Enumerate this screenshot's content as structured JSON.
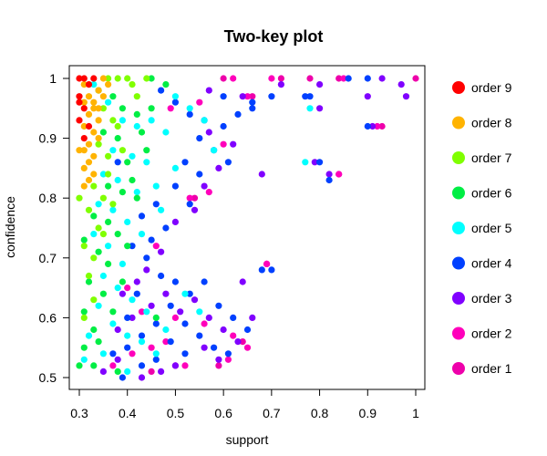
{
  "chart_data": {
    "type": "scatter",
    "title": "Two-key plot",
    "xlabel": "support",
    "ylabel": "confidence",
    "xlim": [
      0.3,
      1.0
    ],
    "ylim": [
      0.5,
      1.0
    ],
    "x_ticks": [
      0.3,
      0.4,
      0.5,
      0.6,
      0.7,
      0.8,
      0.9,
      1
    ],
    "x_tick_labels": [
      "0.3",
      "0.4",
      "0.5",
      "0.6",
      "0.7",
      "0.8",
      "0.9",
      "1"
    ],
    "y_ticks": [
      0.5,
      0.6,
      0.7,
      0.8,
      0.9,
      1
    ],
    "y_tick_labels": [
      "0.5",
      "0.6",
      "0.7",
      "0.8",
      "0.9",
      "1"
    ],
    "grid": false,
    "legend_position": "right",
    "series": [
      {
        "name": "order 9",
        "color": "#ff0000",
        "points": [
          [
            0.3,
            1.0
          ],
          [
            0.31,
            1.0
          ],
          [
            0.32,
            0.99
          ],
          [
            0.3,
            0.97
          ],
          [
            0.31,
            0.95
          ],
          [
            0.3,
            0.93
          ],
          [
            0.32,
            0.92
          ],
          [
            0.31,
            0.9
          ],
          [
            0.33,
            1.0
          ],
          [
            0.3,
            0.96
          ]
        ]
      },
      {
        "name": "order 8",
        "color": "#ffb300",
        "points": [
          [
            0.31,
            0.99
          ],
          [
            0.32,
            0.97
          ],
          [
            0.33,
            0.96
          ],
          [
            0.32,
            0.94
          ],
          [
            0.31,
            0.92
          ],
          [
            0.33,
            0.91
          ],
          [
            0.32,
            0.89
          ],
          [
            0.31,
            0.88
          ],
          [
            0.33,
            0.87
          ],
          [
            0.32,
            0.86
          ],
          [
            0.34,
            0.98
          ],
          [
            0.35,
            0.97
          ],
          [
            0.33,
            0.95
          ],
          [
            0.34,
            0.93
          ],
          [
            0.31,
            0.85
          ],
          [
            0.33,
            0.84
          ],
          [
            0.32,
            0.83
          ],
          [
            0.34,
            0.9
          ],
          [
            0.35,
            1.0
          ],
          [
            0.36,
            0.99
          ],
          [
            0.31,
            0.96
          ],
          [
            0.34,
            0.95
          ],
          [
            0.3,
            0.88
          ],
          [
            0.31,
            0.82
          ]
        ]
      },
      {
        "name": "order 7",
        "color": "#80ff00",
        "points": [
          [
            0.36,
            1.0
          ],
          [
            0.38,
            1.0
          ],
          [
            0.4,
            1.0
          ],
          [
            0.35,
            0.95
          ],
          [
            0.37,
            0.93
          ],
          [
            0.34,
            0.89
          ],
          [
            0.36,
            0.87
          ],
          [
            0.33,
            0.82
          ],
          [
            0.35,
            0.8
          ],
          [
            0.32,
            0.78
          ],
          [
            0.34,
            0.75
          ],
          [
            0.31,
            0.72
          ],
          [
            0.33,
            0.7
          ],
          [
            0.32,
            0.67
          ],
          [
            0.38,
            0.92
          ],
          [
            0.41,
            0.99
          ],
          [
            0.44,
            1.0
          ],
          [
            0.36,
            0.84
          ],
          [
            0.39,
            0.88
          ],
          [
            0.37,
            0.79
          ],
          [
            0.33,
            0.63
          ],
          [
            0.31,
            0.6
          ],
          [
            0.35,
            0.74
          ],
          [
            0.42,
            0.97
          ],
          [
            0.3,
            0.8
          ]
        ]
      },
      {
        "name": "order 6",
        "color": "#00ee44",
        "points": [
          [
            0.34,
            0.98
          ],
          [
            0.37,
            0.97
          ],
          [
            0.39,
            0.95
          ],
          [
            0.42,
            0.94
          ],
          [
            0.35,
            0.91
          ],
          [
            0.38,
            0.9
          ],
          [
            0.4,
            0.86
          ],
          [
            0.36,
            0.82
          ],
          [
            0.39,
            0.81
          ],
          [
            0.33,
            0.77
          ],
          [
            0.36,
            0.76
          ],
          [
            0.31,
            0.73
          ],
          [
            0.34,
            0.71
          ],
          [
            0.32,
            0.66
          ],
          [
            0.35,
            0.64
          ],
          [
            0.31,
            0.61
          ],
          [
            0.33,
            0.58
          ],
          [
            0.31,
            0.55
          ],
          [
            0.3,
            0.52
          ],
          [
            0.45,
            1.0
          ],
          [
            0.48,
            0.99
          ],
          [
            0.43,
            0.91
          ],
          [
            0.41,
            0.83
          ],
          [
            0.38,
            0.74
          ],
          [
            0.36,
            0.69
          ],
          [
            0.4,
            0.72
          ],
          [
            0.37,
            0.61
          ],
          [
            0.34,
            0.56
          ],
          [
            0.42,
            0.8
          ],
          [
            0.45,
            0.95
          ],
          [
            0.33,
            0.52
          ],
          [
            0.46,
            0.6
          ],
          [
            0.38,
            0.51
          ],
          [
            0.44,
            0.88
          ],
          [
            0.39,
            0.66
          ]
        ]
      },
      {
        "name": "order 5",
        "color": "#00ffff",
        "points": [
          [
            0.33,
            0.99
          ],
          [
            0.36,
            0.96
          ],
          [
            0.39,
            0.93
          ],
          [
            0.42,
            0.92
          ],
          [
            0.45,
            0.93
          ],
          [
            0.37,
            0.88
          ],
          [
            0.41,
            0.87
          ],
          [
            0.44,
            0.86
          ],
          [
            0.35,
            0.84
          ],
          [
            0.38,
            0.83
          ],
          [
            0.42,
            0.81
          ],
          [
            0.46,
            0.82
          ],
          [
            0.34,
            0.79
          ],
          [
            0.37,
            0.78
          ],
          [
            0.4,
            0.76
          ],
          [
            0.43,
            0.74
          ],
          [
            0.33,
            0.74
          ],
          [
            0.36,
            0.72
          ],
          [
            0.39,
            0.69
          ],
          [
            0.35,
            0.67
          ],
          [
            0.38,
            0.65
          ],
          [
            0.41,
            0.63
          ],
          [
            0.44,
            0.61
          ],
          [
            0.34,
            0.62
          ],
          [
            0.37,
            0.59
          ],
          [
            0.4,
            0.57
          ],
          [
            0.32,
            0.57
          ],
          [
            0.35,
            0.54
          ],
          [
            0.31,
            0.53
          ],
          [
            0.5,
            0.97
          ],
          [
            0.53,
            0.95
          ],
          [
            0.56,
            0.93
          ],
          [
            0.58,
            0.88
          ],
          [
            0.48,
            0.91
          ],
          [
            0.77,
            0.86
          ],
          [
            0.78,
            0.95
          ],
          [
            0.52,
            0.64
          ],
          [
            0.55,
            0.61
          ],
          [
            0.48,
            0.58
          ],
          [
            0.43,
            0.56
          ],
          [
            0.46,
            0.54
          ],
          [
            0.4,
            0.51
          ],
          [
            0.47,
            0.78
          ],
          [
            0.5,
            0.85
          ]
        ]
      },
      {
        "name": "order 4",
        "color": "#0040ff",
        "points": [
          [
            0.47,
            0.98
          ],
          [
            0.5,
            0.96
          ],
          [
            0.53,
            0.94
          ],
          [
            0.56,
            0.93
          ],
          [
            0.6,
            0.92
          ],
          [
            0.63,
            0.94
          ],
          [
            0.66,
            0.96
          ],
          [
            0.7,
            0.97
          ],
          [
            0.78,
            0.97
          ],
          [
            0.86,
            1.0
          ],
          [
            0.9,
            1.0
          ],
          [
            0.55,
            0.9
          ],
          [
            0.58,
            0.88
          ],
          [
            0.61,
            0.86
          ],
          [
            0.52,
            0.86
          ],
          [
            0.55,
            0.84
          ],
          [
            0.5,
            0.82
          ],
          [
            0.53,
            0.79
          ],
          [
            0.46,
            0.79
          ],
          [
            0.43,
            0.77
          ],
          [
            0.48,
            0.75
          ],
          [
            0.45,
            0.73
          ],
          [
            0.41,
            0.72
          ],
          [
            0.44,
            0.7
          ],
          [
            0.47,
            0.67
          ],
          [
            0.5,
            0.66
          ],
          [
            0.53,
            0.64
          ],
          [
            0.56,
            0.66
          ],
          [
            0.59,
            0.62
          ],
          [
            0.62,
            0.6
          ],
          [
            0.65,
            0.58
          ],
          [
            0.68,
            0.68
          ],
          [
            0.7,
            0.68
          ],
          [
            0.49,
            0.62
          ],
          [
            0.52,
            0.59
          ],
          [
            0.55,
            0.57
          ],
          [
            0.58,
            0.55
          ],
          [
            0.61,
            0.54
          ],
          [
            0.46,
            0.59
          ],
          [
            0.49,
            0.56
          ],
          [
            0.52,
            0.54
          ],
          [
            0.43,
            0.57
          ],
          [
            0.46,
            0.53
          ],
          [
            0.4,
            0.55
          ],
          [
            0.43,
            0.52
          ],
          [
            0.37,
            0.54
          ],
          [
            0.4,
            0.6
          ],
          [
            0.82,
            0.83
          ],
          [
            0.9,
            0.92
          ],
          [
            0.8,
            0.86
          ],
          [
            0.77,
            0.97
          ],
          [
            0.38,
            0.86
          ],
          [
            0.42,
            0.64
          ],
          [
            0.39,
            0.5
          ],
          [
            0.6,
            0.97
          ],
          [
            0.66,
            0.95
          ]
        ]
      },
      {
        "name": "order 3",
        "color": "#8000ff",
        "points": [
          [
            0.57,
            0.98
          ],
          [
            0.64,
            0.97
          ],
          [
            0.72,
            0.99
          ],
          [
            0.8,
            0.99
          ],
          [
            0.93,
            1.0
          ],
          [
            0.97,
            0.99
          ],
          [
            0.9,
            0.97
          ],
          [
            0.8,
            0.95
          ],
          [
            0.57,
            0.91
          ],
          [
            0.62,
            0.89
          ],
          [
            0.59,
            0.85
          ],
          [
            0.56,
            0.82
          ],
          [
            0.54,
            0.78
          ],
          [
            0.5,
            0.76
          ],
          [
            0.47,
            0.71
          ],
          [
            0.44,
            0.68
          ],
          [
            0.42,
            0.66
          ],
          [
            0.39,
            0.64
          ],
          [
            0.41,
            0.6
          ],
          [
            0.38,
            0.58
          ],
          [
            0.45,
            0.62
          ],
          [
            0.48,
            0.64
          ],
          [
            0.51,
            0.61
          ],
          [
            0.54,
            0.63
          ],
          [
            0.57,
            0.6
          ],
          [
            0.6,
            0.58
          ],
          [
            0.63,
            0.56
          ],
          [
            0.66,
            0.6
          ],
          [
            0.56,
            0.55
          ],
          [
            0.59,
            0.53
          ],
          [
            0.5,
            0.52
          ],
          [
            0.47,
            0.51
          ],
          [
            0.43,
            0.5
          ],
          [
            0.38,
            0.53
          ],
          [
            0.35,
            0.51
          ],
          [
            0.82,
            0.84
          ],
          [
            0.79,
            0.86
          ],
          [
            0.91,
            0.92
          ],
          [
            0.98,
            0.97
          ],
          [
            0.64,
            0.66
          ],
          [
            0.68,
            0.84
          ]
        ]
      },
      {
        "name": "order 2",
        "color": "#ff00bb",
        "points": [
          [
            0.62,
            1.0
          ],
          [
            0.7,
            1.0
          ],
          [
            0.85,
            1.0
          ],
          [
            0.92,
            0.92
          ],
          [
            0.84,
            0.84
          ],
          [
            0.65,
            0.97
          ],
          [
            0.55,
            0.96
          ],
          [
            0.49,
            0.95
          ],
          [
            0.6,
            0.89
          ],
          [
            0.57,
            0.81
          ],
          [
            0.53,
            0.8
          ],
          [
            0.46,
            0.72
          ],
          [
            0.4,
            0.65
          ],
          [
            0.43,
            0.61
          ],
          [
            0.5,
            0.6
          ],
          [
            0.56,
            0.59
          ],
          [
            0.62,
            0.57
          ],
          [
            0.65,
            0.55
          ],
          [
            0.48,
            0.56
          ],
          [
            0.52,
            0.52
          ],
          [
            0.45,
            0.55
          ],
          [
            0.69,
            0.69
          ],
          [
            0.61,
            0.53
          ],
          [
            0.41,
            0.54
          ],
          [
            0.37,
            0.52
          ]
        ]
      },
      {
        "name": "order 1",
        "color": "#ee00aa",
        "points": [
          [
            0.6,
            1.0
          ],
          [
            0.72,
            1.0
          ],
          [
            0.78,
            1.0
          ],
          [
            0.84,
            1.0
          ],
          [
            1.0,
            1.0
          ],
          [
            0.93,
            0.92
          ],
          [
            0.84,
            0.84
          ],
          [
            0.69,
            0.69
          ],
          [
            0.64,
            0.56
          ],
          [
            0.54,
            0.8
          ],
          [
            0.5,
            0.52
          ],
          [
            0.66,
            0.97
          ],
          [
            0.45,
            0.51
          ],
          [
            0.59,
            0.52
          ]
        ]
      }
    ],
    "legend": [
      "order 9",
      "order 8",
      "order 7",
      "order 6",
      "order 5",
      "order 4",
      "order 3",
      "order 2",
      "order 1"
    ]
  }
}
